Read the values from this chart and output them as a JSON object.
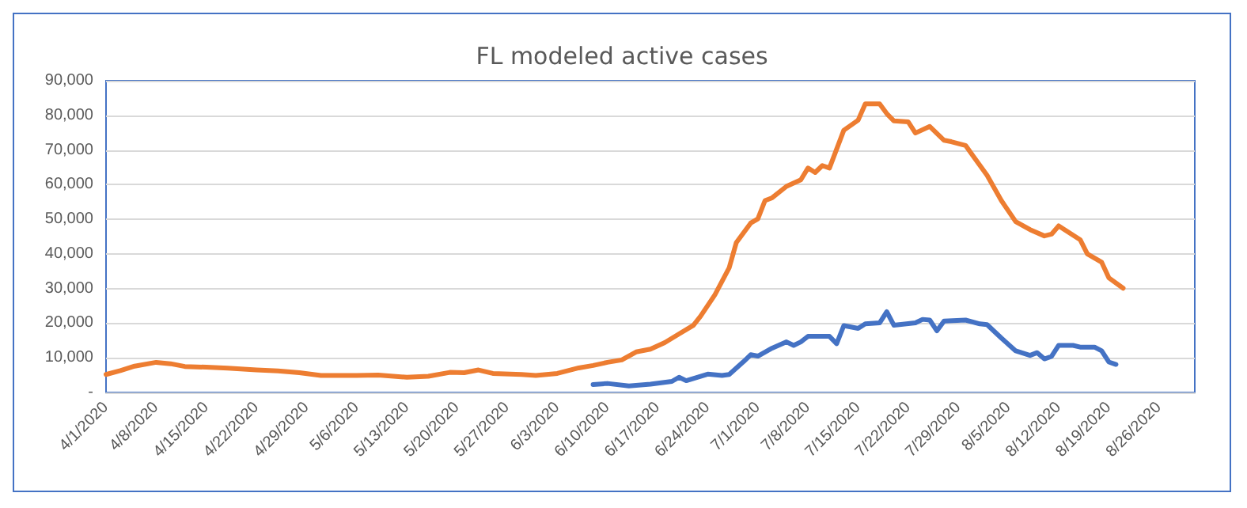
{
  "chart_data": {
    "type": "line",
    "title": "FL modeled active cases",
    "xlim": [
      "2020-04-01",
      "2020-08-31"
    ],
    "xticks": [
      {
        "value": "2020-04-01",
        "label": "4/1/2020"
      },
      {
        "value": "2020-04-08",
        "label": "4/8/2020"
      },
      {
        "value": "2020-04-15",
        "label": "4/15/2020"
      },
      {
        "value": "2020-04-22",
        "label": "4/22/2020"
      },
      {
        "value": "2020-04-29",
        "label": "4/29/2020"
      },
      {
        "value": "2020-05-06",
        "label": "5/6/2020"
      },
      {
        "value": "2020-05-13",
        "label": "5/13/2020"
      },
      {
        "value": "2020-05-20",
        "label": "5/20/2020"
      },
      {
        "value": "2020-05-27",
        "label": "5/27/2020"
      },
      {
        "value": "2020-06-03",
        "label": "6/3/2020"
      },
      {
        "value": "2020-06-10",
        "label": "6/10/2020"
      },
      {
        "value": "2020-06-17",
        "label": "6/17/2020"
      },
      {
        "value": "2020-06-24",
        "label": "6/24/2020"
      },
      {
        "value": "2020-07-01",
        "label": "7/1/2020"
      },
      {
        "value": "2020-07-08",
        "label": "7/8/2020"
      },
      {
        "value": "2020-07-15",
        "label": "7/15/2020"
      },
      {
        "value": "2020-07-22",
        "label": "7/22/2020"
      },
      {
        "value": "2020-07-29",
        "label": "7/29/2020"
      },
      {
        "value": "2020-08-05",
        "label": "8/5/2020"
      },
      {
        "value": "2020-08-12",
        "label": "8/12/2020"
      },
      {
        "value": "2020-08-19",
        "label": "8/19/2020"
      },
      {
        "value": "2020-08-26",
        "label": "8/26/2020"
      }
    ],
    "ylim": [
      0,
      90000
    ],
    "yticks": [
      {
        "value": 0,
        "label": "-"
      },
      {
        "value": 10000,
        "label": "10,000"
      },
      {
        "value": 20000,
        "label": "20,000"
      },
      {
        "value": 30000,
        "label": "30,000"
      },
      {
        "value": 40000,
        "label": "40,000"
      },
      {
        "value": 50000,
        "label": "50,000"
      },
      {
        "value": 60000,
        "label": "60,000"
      },
      {
        "value": 70000,
        "label": "70,000"
      },
      {
        "value": 80000,
        "label": "80,000"
      },
      {
        "value": 90000,
        "label": "90,000"
      }
    ],
    "grid": "y",
    "marker": "none",
    "line_style": "solid",
    "series": [
      {
        "color": "#ed7d31",
        "x": [
          "2020-04-01",
          "2020-04-03",
          "2020-04-05",
          "2020-04-08",
          "2020-04-10",
          "2020-04-12",
          "2020-04-15",
          "2020-04-18",
          "2020-04-22",
          "2020-04-25",
          "2020-04-28",
          "2020-05-01",
          "2020-05-06",
          "2020-05-09",
          "2020-05-13",
          "2020-05-16",
          "2020-05-19",
          "2020-05-21",
          "2020-05-23",
          "2020-05-25",
          "2020-05-29",
          "2020-05-31",
          "2020-06-03",
          "2020-06-06",
          "2020-06-08",
          "2020-06-10",
          "2020-06-12",
          "2020-06-14",
          "2020-06-16",
          "2020-06-18",
          "2020-06-20",
          "2020-06-22",
          "2020-06-23",
          "2020-06-25",
          "2020-06-27",
          "2020-06-28",
          "2020-06-30",
          "2020-07-01",
          "2020-07-02",
          "2020-07-03",
          "2020-07-05",
          "2020-07-07",
          "2020-07-08",
          "2020-07-09",
          "2020-07-10",
          "2020-07-11",
          "2020-07-13",
          "2020-07-15",
          "2020-07-16",
          "2020-07-18",
          "2020-07-19",
          "2020-07-20",
          "2020-07-22",
          "2020-07-23",
          "2020-07-25",
          "2020-07-27",
          "2020-07-28",
          "2020-07-30",
          "2020-07-31",
          "2020-08-02",
          "2020-08-04",
          "2020-08-06",
          "2020-08-08",
          "2020-08-10",
          "2020-08-11",
          "2020-08-12",
          "2020-08-15",
          "2020-08-16",
          "2020-08-18",
          "2020-08-19",
          "2020-08-21"
        ],
        "values": [
          5200,
          6300,
          7600,
          8700,
          8300,
          7500,
          7300,
          7000,
          6500,
          6200,
          5700,
          4900,
          4900,
          5000,
          4400,
          4700,
          5800,
          5700,
          6500,
          5500,
          5200,
          4900,
          5500,
          7100,
          7800,
          8700,
          9400,
          11700,
          12500,
          14400,
          16900,
          19400,
          22000,
          28200,
          36000,
          43300,
          48900,
          50100,
          55400,
          56200,
          59500,
          61400,
          64800,
          63500,
          65500,
          64800,
          75700,
          78600,
          83300,
          83300,
          80500,
          78400,
          78100,
          74900,
          76800,
          72800,
          72400,
          71300,
          68400,
          62700,
          55400,
          49300,
          47000,
          45200,
          45700,
          48100,
          44100,
          40000,
          37600,
          33100,
          30100
        ]
      },
      {
        "color": "#4472c4",
        "x": [
          "2020-06-08",
          "2020-06-10",
          "2020-06-13",
          "2020-06-16",
          "2020-06-19",
          "2020-06-20",
          "2020-06-21",
          "2020-06-24",
          "2020-06-26",
          "2020-06-27",
          "2020-06-29",
          "2020-06-30",
          "2020-07-01",
          "2020-07-03",
          "2020-07-05",
          "2020-07-06",
          "2020-07-07",
          "2020-07-08",
          "2020-07-11",
          "2020-07-12",
          "2020-07-13",
          "2020-07-15",
          "2020-07-16",
          "2020-07-18",
          "2020-07-19",
          "2020-07-20",
          "2020-07-23",
          "2020-07-24",
          "2020-07-25",
          "2020-07-26",
          "2020-07-27",
          "2020-07-30",
          "2020-08-01",
          "2020-08-02",
          "2020-08-04",
          "2020-08-06",
          "2020-08-08",
          "2020-08-09",
          "2020-08-10",
          "2020-08-11",
          "2020-08-12",
          "2020-08-14",
          "2020-08-15",
          "2020-08-17",
          "2020-08-18",
          "2020-08-19",
          "2020-08-20"
        ],
        "values": [
          2300,
          2600,
          1900,
          2400,
          3200,
          4400,
          3400,
          5300,
          4900,
          5200,
          8900,
          10900,
          10500,
          12800,
          14600,
          13600,
          14600,
          16200,
          16200,
          14100,
          19300,
          18500,
          19800,
          20100,
          23300,
          19400,
          20100,
          21100,
          20900,
          17800,
          20600,
          20900,
          19800,
          19600,
          15700,
          12000,
          10700,
          11500,
          9700,
          10400,
          13600,
          13600,
          13100,
          13100,
          12000,
          8800,
          8100
        ]
      }
    ]
  }
}
